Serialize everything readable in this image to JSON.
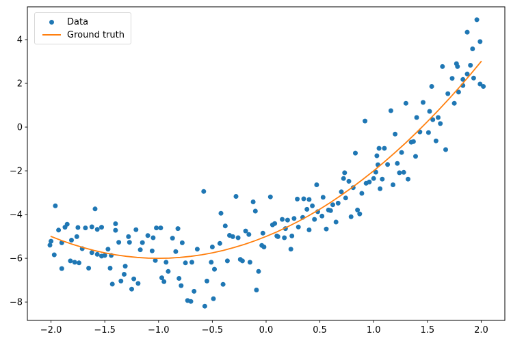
{
  "chart_data": {
    "type": "scatter",
    "title": "",
    "xlabel": "",
    "ylabel": "",
    "grid": false,
    "xlim": [
      -2.22,
      2.22
    ],
    "ylim": [
      -8.84,
      5.5
    ],
    "xticks": {
      "values": [
        -2.0,
        -1.5,
        -1.0,
        -0.5,
        0.0,
        0.5,
        1.0,
        1.5,
        2.0
      ],
      "labels": [
        "−2.0",
        "−1.5",
        "−1.0",
        "−0.5",
        "0.0",
        "0.5",
        "1.0",
        "1.5",
        "2.0"
      ]
    },
    "yticks": {
      "values": [
        4,
        2,
        0,
        -2,
        -4,
        -6,
        -8
      ],
      "labels": [
        "4",
        "2",
        "0",
        "−2",
        "−4",
        "−6",
        "−8"
      ]
    },
    "legend": {
      "position": "upper-left",
      "items": [
        {
          "label": "Data",
          "marker": "dot",
          "color": "#1f77b4"
        },
        {
          "label": "Ground truth",
          "marker": "line",
          "color": "#ff7f0e"
        }
      ]
    },
    "series": [
      {
        "name": "Data",
        "type": "scatter",
        "color": "#1f77b4",
        "marker_size": 7,
        "points": [
          [
            -2.01,
            -5.4
          ],
          [
            -2.0,
            -5.22
          ],
          [
            -1.97,
            -5.84
          ],
          [
            -1.96,
            -3.6
          ],
          [
            -1.93,
            -4.71
          ],
          [
            -1.9,
            -5.29
          ],
          [
            -1.9,
            -6.47
          ],
          [
            -1.87,
            -4.58
          ],
          [
            -1.85,
            -4.44
          ],
          [
            -1.82,
            -6.12
          ],
          [
            -1.81,
            -5.17
          ],
          [
            -1.78,
            -6.18
          ],
          [
            -1.76,
            -5.01
          ],
          [
            -1.75,
            -4.59
          ],
          [
            -1.74,
            -6.21
          ],
          [
            -1.71,
            -5.56
          ],
          [
            -1.68,
            -4.61
          ],
          [
            -1.65,
            -6.45
          ],
          [
            -1.62,
            -4.56
          ],
          [
            -1.62,
            -5.74
          ],
          [
            -1.59,
            -3.74
          ],
          [
            -1.57,
            -4.68
          ],
          [
            -1.57,
            -5.82
          ],
          [
            -1.53,
            -4.58
          ],
          [
            -1.53,
            -5.9
          ],
          [
            -1.5,
            -5.87
          ],
          [
            -1.47,
            -5.58
          ],
          [
            -1.45,
            -6.45
          ],
          [
            -1.44,
            -5.87
          ],
          [
            -1.43,
            -7.18
          ],
          [
            -1.4,
            -4.42
          ],
          [
            -1.4,
            -4.72
          ],
          [
            -1.37,
            -5.27
          ],
          [
            -1.35,
            -7.04
          ],
          [
            -1.32,
            -6.73
          ],
          [
            -1.31,
            -6.36
          ],
          [
            -1.28,
            -5.01
          ],
          [
            -1.27,
            -5.27
          ],
          [
            -1.25,
            -7.41
          ],
          [
            -1.23,
            -6.94
          ],
          [
            -1.21,
            -4.69
          ],
          [
            -1.19,
            -7.15
          ],
          [
            -1.17,
            -5.61
          ],
          [
            -1.15,
            -5.28
          ],
          [
            -1.1,
            -4.96
          ],
          [
            -1.06,
            -5.66
          ],
          [
            -1.05,
            -5.06
          ],
          [
            -1.03,
            -6.1
          ],
          [
            -1.02,
            -4.61
          ],
          [
            -0.98,
            -4.61
          ],
          [
            -0.97,
            -6.89
          ],
          [
            -0.95,
            -7.07
          ],
          [
            -0.93,
            -6.18
          ],
          [
            -0.91,
            -6.6
          ],
          [
            -0.87,
            -5.08
          ],
          [
            -0.84,
            -5.69
          ],
          [
            -0.82,
            -4.64
          ],
          [
            -0.81,
            -6.92
          ],
          [
            -0.79,
            -7.25
          ],
          [
            -0.78,
            -5.29
          ],
          [
            -0.75,
            -6.21
          ],
          [
            -0.73,
            -7.93
          ],
          [
            -0.7,
            -7.97
          ],
          [
            -0.69,
            -6.18
          ],
          [
            -0.67,
            -7.51
          ],
          [
            -0.64,
            -5.58
          ],
          [
            -0.58,
            -2.94
          ],
          [
            -0.57,
            -8.19
          ],
          [
            -0.55,
            -7.04
          ],
          [
            -0.51,
            -6.18
          ],
          [
            -0.5,
            -5.48
          ],
          [
            -0.49,
            -7.85
          ],
          [
            -0.48,
            -6.5
          ],
          [
            -0.43,
            -5.32
          ],
          [
            -0.42,
            -3.94
          ],
          [
            -0.4,
            -7.19
          ],
          [
            -0.38,
            -4.52
          ],
          [
            -0.36,
            -6.12
          ],
          [
            -0.34,
            -4.95
          ],
          [
            -0.31,
            -5.01
          ],
          [
            -0.28,
            -3.17
          ],
          [
            -0.26,
            -5.06
          ],
          [
            -0.24,
            -6.05
          ],
          [
            -0.22,
            -6.12
          ],
          [
            -0.19,
            -4.75
          ],
          [
            -0.16,
            -4.91
          ],
          [
            -0.15,
            -6.18
          ],
          [
            -0.12,
            -3.42
          ],
          [
            -0.1,
            -3.84
          ],
          [
            -0.09,
            -7.45
          ],
          [
            -0.07,
            -6.6
          ],
          [
            -0.04,
            -5.41
          ],
          [
            -0.03,
            -4.85
          ],
          [
            -0.02,
            -5.48
          ],
          [
            0.04,
            -3.19
          ],
          [
            0.06,
            -4.47
          ],
          [
            0.08,
            -4.41
          ],
          [
            0.1,
            -4.98
          ],
          [
            0.11,
            -5.01
          ],
          [
            0.15,
            -4.22
          ],
          [
            0.17,
            -5.06
          ],
          [
            0.18,
            -4.64
          ],
          [
            0.2,
            -4.25
          ],
          [
            0.23,
            -5.58
          ],
          [
            0.24,
            -4.98
          ],
          [
            0.26,
            -4.18
          ],
          [
            0.29,
            -3.29
          ],
          [
            0.3,
            -4.57
          ],
          [
            0.34,
            -4.13
          ],
          [
            0.35,
            -3.28
          ],
          [
            0.38,
            -3.76
          ],
          [
            0.4,
            -3.31
          ],
          [
            0.4,
            -4.7
          ],
          [
            0.43,
            -3.6
          ],
          [
            0.45,
            -4.22
          ],
          [
            0.47,
            -2.64
          ],
          [
            0.48,
            -3.87
          ],
          [
            0.52,
            -4.07
          ],
          [
            0.53,
            -3.21
          ],
          [
            0.56,
            -4.66
          ],
          [
            0.58,
            -3.79
          ],
          [
            0.6,
            -3.82
          ],
          [
            0.62,
            -3.55
          ],
          [
            0.65,
            -4.34
          ],
          [
            0.67,
            -3.48
          ],
          [
            0.7,
            -2.96
          ],
          [
            0.72,
            -2.35
          ],
          [
            0.73,
            -2.09
          ],
          [
            0.74,
            -3.24
          ],
          [
            0.77,
            -2.48
          ],
          [
            0.79,
            -4.1
          ],
          [
            0.81,
            -2.77
          ],
          [
            0.83,
            -1.19
          ],
          [
            0.85,
            -3.79
          ],
          [
            0.87,
            -3.97
          ],
          [
            0.89,
            -3.03
          ],
          [
            0.92,
            0.28
          ],
          [
            0.93,
            -2.57
          ],
          [
            0.96,
            -2.51
          ],
          [
            1.0,
            -2.35
          ],
          [
            1.02,
            -2.06
          ],
          [
            1.03,
            -1.31
          ],
          [
            1.04,
            -1.72
          ],
          [
            1.05,
            -0.97
          ],
          [
            1.06,
            -2.82
          ],
          [
            1.08,
            -2.38
          ],
          [
            1.1,
            -0.97
          ],
          [
            1.13,
            -1.71
          ],
          [
            1.16,
            0.75
          ],
          [
            1.18,
            -2.64
          ],
          [
            1.2,
            -0.32
          ],
          [
            1.22,
            -1.66
          ],
          [
            1.24,
            -2.09
          ],
          [
            1.26,
            -1.16
          ],
          [
            1.28,
            -2.07
          ],
          [
            1.3,
            1.09
          ],
          [
            1.32,
            -2.38
          ],
          [
            1.35,
            -0.69
          ],
          [
            1.37,
            -0.66
          ],
          [
            1.39,
            -1.34
          ],
          [
            1.4,
            0.44
          ],
          [
            1.43,
            -0.22
          ],
          [
            1.46,
            1.13
          ],
          [
            1.51,
            -0.25
          ],
          [
            1.52,
            0.72
          ],
          [
            1.54,
            1.86
          ],
          [
            1.55,
            0.34
          ],
          [
            1.58,
            -0.63
          ],
          [
            1.6,
            0.44
          ],
          [
            1.62,
            0.16
          ],
          [
            1.64,
            2.77
          ],
          [
            1.67,
            -1.03
          ],
          [
            1.69,
            1.53
          ],
          [
            1.73,
            2.23
          ],
          [
            1.75,
            1.09
          ],
          [
            1.77,
            2.9
          ],
          [
            1.78,
            2.77
          ],
          [
            1.79,
            1.6
          ],
          [
            1.83,
            2.18
          ],
          [
            1.83,
            1.9
          ],
          [
            1.87,
            4.34
          ],
          [
            1.87,
            2.43
          ],
          [
            1.9,
            2.83
          ],
          [
            1.92,
            3.58
          ],
          [
            1.93,
            2.24
          ],
          [
            1.96,
            4.91
          ],
          [
            1.99,
            3.91
          ],
          [
            1.99,
            1.97
          ],
          [
            2.02,
            1.86
          ]
        ]
      },
      {
        "name": "Ground truth",
        "type": "line",
        "color": "#ff7f0e",
        "line_width": 1.8,
        "points": [
          [
            -2.0,
            -5.0
          ],
          [
            -1.9,
            -5.19
          ],
          [
            -1.8,
            -5.36
          ],
          [
            -1.7,
            -5.51
          ],
          [
            -1.6,
            -5.64
          ],
          [
            -1.5,
            -5.75
          ],
          [
            -1.4,
            -5.84
          ],
          [
            -1.3,
            -5.91
          ],
          [
            -1.2,
            -5.96
          ],
          [
            -1.1,
            -5.99
          ],
          [
            -1.0,
            -6.0
          ],
          [
            -0.9,
            -5.99
          ],
          [
            -0.8,
            -5.96
          ],
          [
            -0.7,
            -5.91
          ],
          [
            -0.6,
            -5.84
          ],
          [
            -0.5,
            -5.75
          ],
          [
            -0.4,
            -5.64
          ],
          [
            -0.3,
            -5.51
          ],
          [
            -0.2,
            -5.36
          ],
          [
            -0.1,
            -5.19
          ],
          [
            0.0,
            -5.0
          ],
          [
            0.1,
            -4.79
          ],
          [
            0.2,
            -4.56
          ],
          [
            0.3,
            -4.31
          ],
          [
            0.4,
            -4.04
          ],
          [
            0.5,
            -3.75
          ],
          [
            0.6,
            -3.44
          ],
          [
            0.7,
            -3.11
          ],
          [
            0.8,
            -2.76
          ],
          [
            0.9,
            -2.39
          ],
          [
            1.0,
            -2.0
          ],
          [
            1.1,
            -1.59
          ],
          [
            1.2,
            -1.16
          ],
          [
            1.3,
            -0.71
          ],
          [
            1.4,
            -0.24
          ],
          [
            1.5,
            0.25
          ],
          [
            1.6,
            0.76
          ],
          [
            1.7,
            1.29
          ],
          [
            1.8,
            1.84
          ],
          [
            1.9,
            2.41
          ],
          [
            2.0,
            3.0
          ]
        ]
      }
    ],
    "colors": {
      "scatter": "#1f77b4",
      "line": "#ff7f0e",
      "axis": "#000000",
      "background": "#ffffff"
    }
  }
}
